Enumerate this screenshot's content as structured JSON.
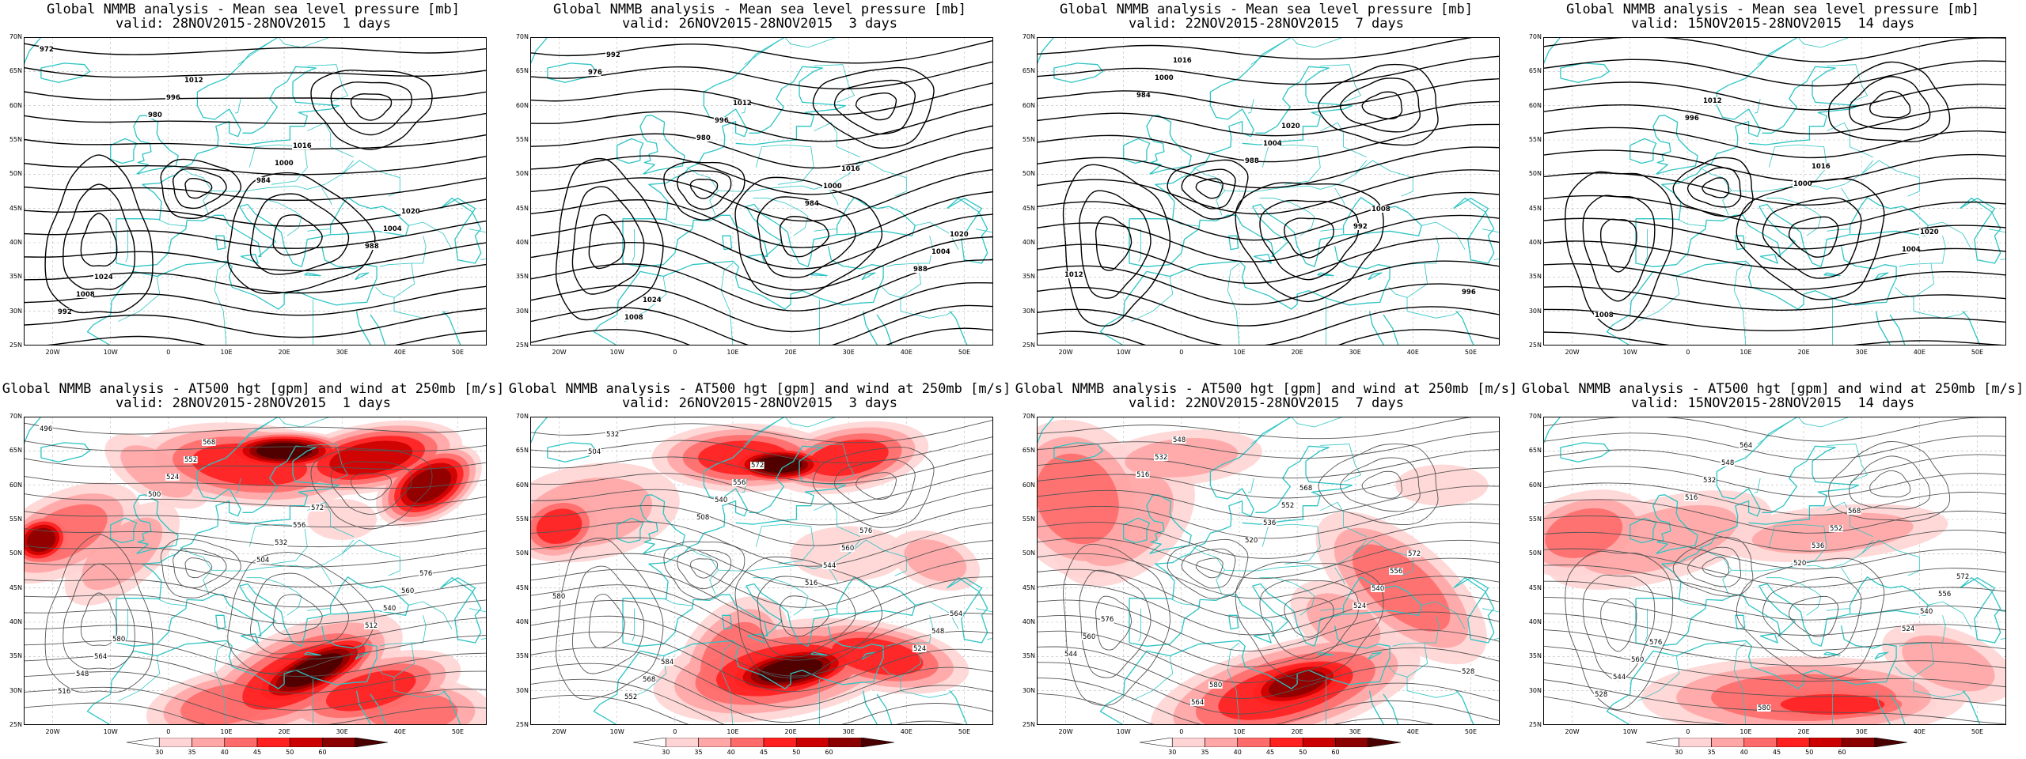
{
  "panels": [
    {
      "id": "mslp-1",
      "title": "Global NMMB analysis - Mean sea level pressure [mb]",
      "valid": "valid: 28NOV2015-28NOV2015  1 days",
      "kind": "mslp",
      "contour_labels": [
        "972",
        "980",
        "984",
        "988",
        "992",
        "996",
        "1000",
        "1004",
        "1008",
        "1012",
        "1016",
        "1020",
        "1024"
      ]
    },
    {
      "id": "mslp-3",
      "title": "Global NMMB analysis - Mean sea level pressure [mb]",
      "valid": "valid: 26NOV2015-28NOV2015  3 days",
      "kind": "mslp",
      "contour_labels": [
        "976",
        "980",
        "984",
        "988",
        "992",
        "996",
        "1000",
        "1004",
        "1008",
        "1012",
        "1016",
        "1020",
        "1024"
      ]
    },
    {
      "id": "mslp-7",
      "title": "Global NMMB analysis - Mean sea level pressure [mb]",
      "valid": "valid: 22NOV2015-28NOV2015  7 days",
      "kind": "mslp",
      "contour_labels": [
        "984",
        "988",
        "992",
        "996",
        "1000",
        "1004",
        "1008",
        "1012",
        "1016",
        "1020"
      ]
    },
    {
      "id": "mslp-14",
      "title": "Global NMMB analysis - Mean sea level pressure [mb]",
      "valid": "valid: 15NOV2015-28NOV2015  14 days",
      "kind": "mslp",
      "contour_labels": [
        "996",
        "1000",
        "1004",
        "1008",
        "1012",
        "1016",
        "1020"
      ]
    },
    {
      "id": "z500-1",
      "title": "Global NMMB analysis - AT500 hgt [gpm] and wind at 250mb [m/s]",
      "valid": "valid: 28NOV2015-28NOV2015  1 days",
      "kind": "z500",
      "contour_labels": [
        "496",
        "500",
        "504",
        "512",
        "516",
        "524",
        "532",
        "540",
        "548",
        "552",
        "556",
        "560",
        "564",
        "568",
        "572",
        "576",
        "580"
      ]
    },
    {
      "id": "z500-3",
      "title": "Global NMMB analysis - AT500 hgt [gpm] and wind at 250mb [m/s]",
      "valid": "valid: 26NOV2015-28NOV2015  3 days",
      "kind": "z500",
      "contour_labels": [
        "504",
        "508",
        "516",
        "524",
        "532",
        "540",
        "544",
        "548",
        "552",
        "556",
        "560",
        "564",
        "568",
        "572",
        "576",
        "580",
        "584"
      ]
    },
    {
      "id": "z500-7",
      "title": "Global NMMB analysis - AT500 hgt [gpm] and wind at 250mb [m/s]",
      "valid": "valid: 22NOV2015-28NOV2015  7 days",
      "kind": "z500",
      "contour_labels": [
        "516",
        "520",
        "524",
        "528",
        "532",
        "536",
        "540",
        "544",
        "548",
        "552",
        "556",
        "560",
        "564",
        "568",
        "572",
        "576",
        "580"
      ]
    },
    {
      "id": "z500-14",
      "title": "Global NMMB analysis - AT500 hgt [gpm] and wind at 250mb [m/s]",
      "valid": "valid: 15NOV2015-28NOV2015  14 days",
      "kind": "z500",
      "contour_labels": [
        "516",
        "520",
        "524",
        "528",
        "532",
        "536",
        "540",
        "544",
        "548",
        "552",
        "556",
        "560",
        "564",
        "568",
        "572",
        "576",
        "580"
      ]
    }
  ],
  "axes": {
    "lat_labels": [
      "70N",
      "65N",
      "60N",
      "55N",
      "50N",
      "45N",
      "40N",
      "35N",
      "30N",
      "25N"
    ],
    "lon_labels": [
      "20W",
      "10W",
      "0",
      "10E",
      "20E",
      "30E",
      "40E",
      "50E"
    ]
  },
  "colorbar": {
    "ticks": [
      "30",
      "35",
      "40",
      "45",
      "50",
      "60"
    ],
    "colors": [
      "#ffffff",
      "#ffd4d4",
      "#ffa6a6",
      "#ff6b6b",
      "#ff2020",
      "#cc0000",
      "#8b0000",
      "#4a0000"
    ]
  },
  "colors": {
    "coast": "#2ec4c4",
    "contour_mslp": "#000000",
    "contour_z500": "#555555",
    "grid": "#bbbbbb"
  }
}
